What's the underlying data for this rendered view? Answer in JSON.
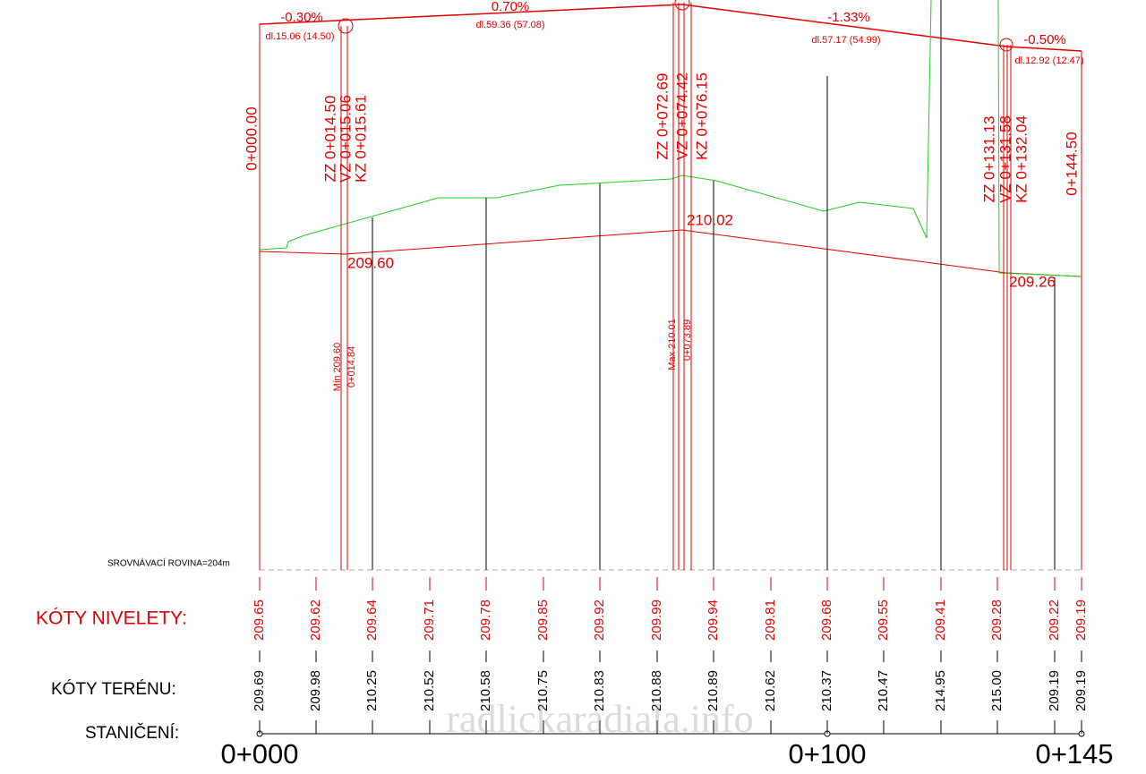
{
  "grades": [
    {
      "grade": "-0.30%",
      "length": "dl.15.06 (14.50)"
    },
    {
      "grade": "0.70%",
      "length": "dl.59.36 (57.08)"
    },
    {
      "grade": "-1.33%",
      "length": "dl.57.17 (54.99)"
    },
    {
      "grade": "-0.50%",
      "length": "dl.12.92 (12.47)"
    }
  ],
  "vertical_labels": [
    "0+000.00",
    "ZZ 0+014.50",
    "VZ 0+015.06",
    "KZ 0+015.61",
    "ZZ 0+072.69",
    "VZ 0+074.42",
    "KZ 0+076.15",
    "ZZ 0+131.13",
    "VZ 0+131.58",
    "KZ 0+132.04",
    "0+144.50"
  ],
  "elevation_labels": [
    "209.60",
    "210.02",
    "209.26"
  ],
  "extremes": [
    {
      "label": "Min 209.60",
      "station": "0+014.84"
    },
    {
      "label": "Max 210.01",
      "station": "0+073.89"
    }
  ],
  "datum": "SROVNÁVACÍ ROVINA=204m",
  "rows": {
    "niveleta": {
      "label": "KÓTY NIVELETY:",
      "values": [
        "209.65",
        "209.62",
        "209.64",
        "209.71",
        "209.78",
        "209.85",
        "209.92",
        "209.99",
        "209.94",
        "209.81",
        "209.68",
        "209.55",
        "209.41",
        "209.28",
        "209.22",
        "209.19"
      ]
    },
    "terrain": {
      "label": "KÓTY TERÉNU:",
      "values": [
        "209.69",
        "209.98",
        "210.25",
        "210.52",
        "210.58",
        "210.75",
        "210.83",
        "210.88",
        "210.89",
        "210.62",
        "210.37",
        "210.47",
        "214.95",
        "215.00",
        "209.19",
        "209.19"
      ]
    },
    "stationing": {
      "label": "STANIČENÍ:",
      "values": [
        "0+000",
        "0+100",
        "0+145"
      ]
    }
  },
  "watermark": "radlickaradiala.info"
}
